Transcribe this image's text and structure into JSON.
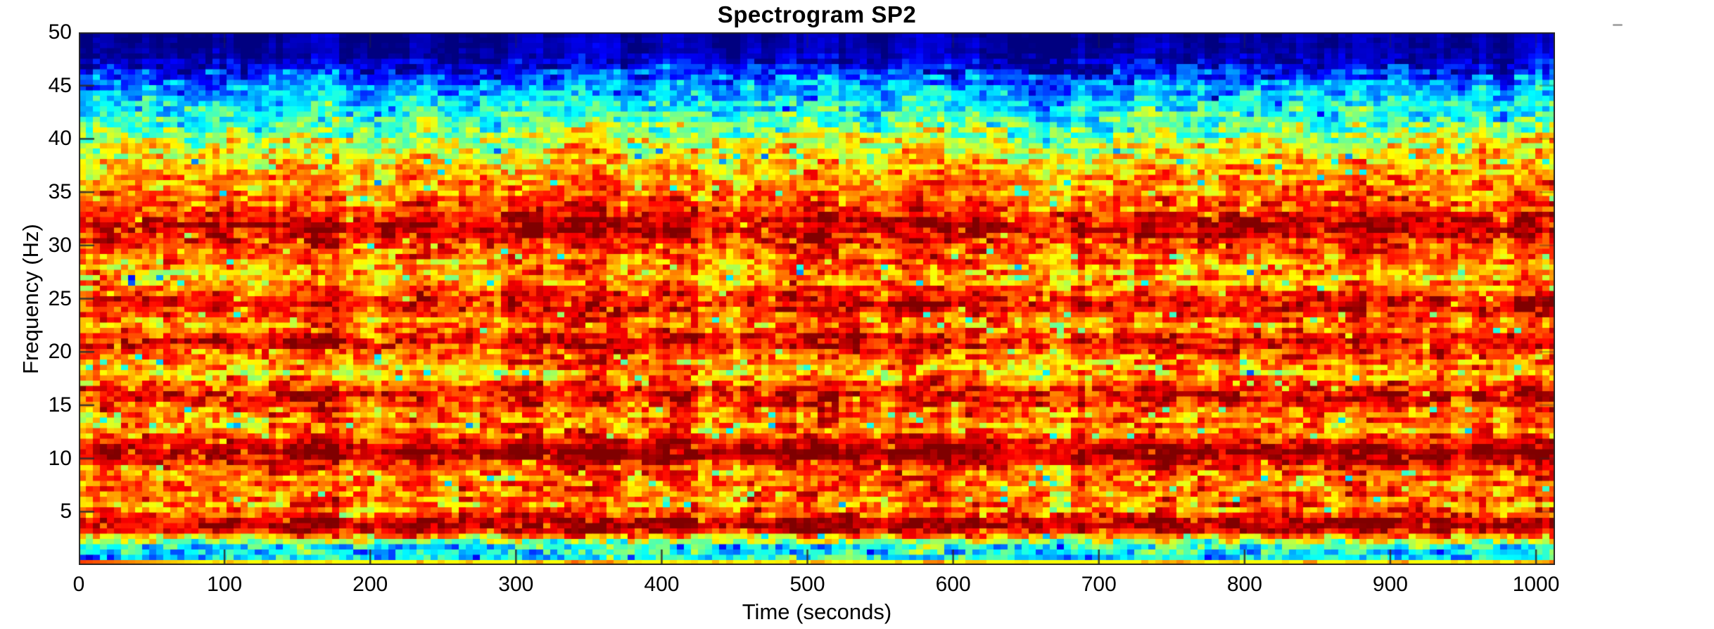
{
  "figure": {
    "background": "#ffffff"
  },
  "chart_data": {
    "type": "heatmap",
    "variant": "spectrogram",
    "title": "Spectrogram SP2",
    "xlabel": "Time (seconds)",
    "ylabel": "Frequency (Hz)",
    "xlim": [
      0,
      1013
    ],
    "ylim": [
      0,
      50
    ],
    "x_ticks": [
      0,
      100,
      200,
      300,
      400,
      500,
      600,
      700,
      800,
      900,
      1000
    ],
    "y_ticks": [
      5,
      10,
      15,
      20,
      25,
      30,
      35,
      40,
      45,
      50
    ],
    "colormap": "jet",
    "grid": false,
    "legend": "none",
    "resolution": {
      "time_bin_sec": 4.8,
      "freq_bin_hz": 0.5
    },
    "intensity_profile": [
      [
        0.25,
        0.6,
        0.06
      ],
      [
        0.7,
        0.34,
        0.09
      ],
      [
        1.2,
        0.35,
        0.09
      ],
      [
        1.8,
        0.4,
        0.09
      ],
      [
        2.3,
        0.55,
        0.1
      ],
      [
        2.7,
        0.72,
        0.09
      ],
      [
        3.1,
        0.88,
        0.07
      ],
      [
        3.6,
        0.95,
        0.05
      ],
      [
        4.1,
        0.94,
        0.06
      ],
      [
        4.7,
        0.82,
        0.08
      ],
      [
        5.3,
        0.72,
        0.1
      ],
      [
        6.1,
        0.76,
        0.09
      ],
      [
        7.0,
        0.78,
        0.09
      ],
      [
        8.0,
        0.74,
        0.09
      ],
      [
        9.0,
        0.8,
        0.08
      ],
      [
        9.8,
        0.9,
        0.06
      ],
      [
        10.6,
        0.98,
        0.04
      ],
      [
        11.4,
        0.9,
        0.06
      ],
      [
        12.2,
        0.78,
        0.08
      ],
      [
        12.9,
        0.72,
        0.09
      ],
      [
        13.8,
        0.75,
        0.09
      ],
      [
        14.8,
        0.8,
        0.08
      ],
      [
        15.6,
        0.86,
        0.07
      ],
      [
        16.3,
        0.88,
        0.07
      ],
      [
        17.2,
        0.76,
        0.08
      ],
      [
        18.0,
        0.68,
        0.1
      ],
      [
        19.0,
        0.73,
        0.09
      ],
      [
        20.0,
        0.8,
        0.08
      ],
      [
        20.8,
        0.9,
        0.07
      ],
      [
        21.5,
        0.85,
        0.07
      ],
      [
        22.5,
        0.74,
        0.09
      ],
      [
        23.5,
        0.79,
        0.08
      ],
      [
        24.3,
        0.89,
        0.07
      ],
      [
        25.0,
        0.86,
        0.07
      ],
      [
        26.0,
        0.76,
        0.08
      ],
      [
        27.0,
        0.7,
        0.1
      ],
      [
        28.0,
        0.72,
        0.09
      ],
      [
        29.0,
        0.77,
        0.08
      ],
      [
        30.0,
        0.82,
        0.08
      ],
      [
        31.0,
        0.88,
        0.07
      ],
      [
        31.6,
        0.93,
        0.06
      ],
      [
        32.2,
        0.92,
        0.06
      ],
      [
        32.8,
        0.86,
        0.07
      ],
      [
        33.5,
        0.8,
        0.08
      ],
      [
        34.5,
        0.77,
        0.08
      ],
      [
        35.5,
        0.74,
        0.08
      ],
      [
        36.5,
        0.71,
        0.08
      ],
      [
        37.5,
        0.68,
        0.08
      ],
      [
        38.5,
        0.64,
        0.09
      ],
      [
        39.5,
        0.58,
        0.1
      ],
      [
        40.5,
        0.52,
        0.1
      ],
      [
        41.5,
        0.45,
        0.09
      ],
      [
        42.5,
        0.4,
        0.08
      ],
      [
        43.5,
        0.36,
        0.07
      ],
      [
        44.5,
        0.3,
        0.07
      ],
      [
        45.5,
        0.22,
        0.08
      ],
      [
        46.5,
        0.13,
        0.09
      ],
      [
        47.3,
        0.06,
        0.05
      ],
      [
        48.3,
        0.03,
        0.02
      ],
      [
        50.0,
        0.02,
        0.01
      ]
    ],
    "features": {
      "dark_bands_hz": [
        32,
        24.5,
        21,
        16,
        10.6,
        4
      ],
      "top_quiet_above_hz": 46.5,
      "low_cyan_band_hz": [
        0.6,
        2.2
      ],
      "bottom_left_hot_streak": {
        "below_hz": 0.55,
        "until_sec": 90
      },
      "vertical_seam_time_sec": 430
    },
    "noise_seed": 7
  },
  "axes_style": {
    "axis_color": "#262626",
    "tick_color": "#2e2e2e",
    "label_color": "#000000",
    "navy_floor": "#000084"
  }
}
